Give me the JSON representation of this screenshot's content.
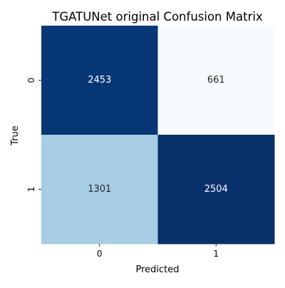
{
  "chart_data": {
    "type": "heatmap",
    "title": "TGATUNet original Confusion Matrix",
    "xlabel": "Predicted",
    "ylabel": "True",
    "x_categories": [
      "0",
      "1"
    ],
    "y_categories": [
      "0",
      "1"
    ],
    "values": [
      [
        2453,
        661
      ],
      [
        1301,
        2504
      ]
    ],
    "colormap": "Blues",
    "colors": {
      "dark": "#08306b",
      "light": "#f7fbff",
      "mid": "#a8cee4",
      "text_on_dark": "#ffffff",
      "text_on_light": "#262626"
    },
    "colorbar": false,
    "grid": false
  }
}
